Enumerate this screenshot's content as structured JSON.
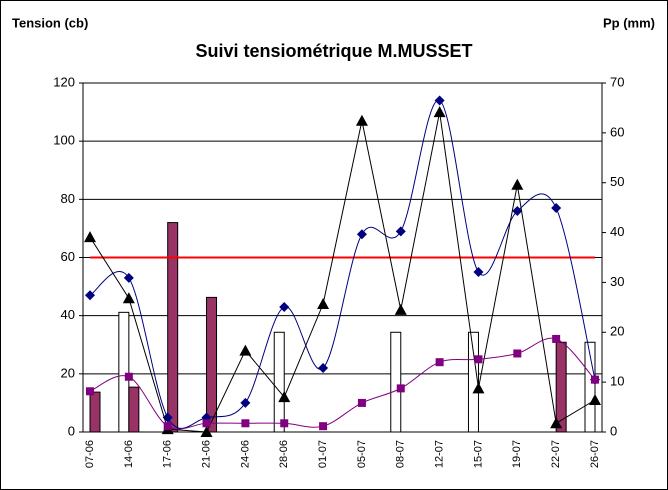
{
  "chart_data": {
    "type": "combo",
    "title": "Suivi tensiométrique M.MUSSET",
    "y_label": "Tension (cb)",
    "y2_label": "Pp (mm)",
    "categories": [
      "07-06",
      "14-06",
      "17-06",
      "21-06",
      "24-06",
      "28-06",
      "01-07",
      "05-07",
      "08-07",
      "12-07",
      "15-07",
      "19-07",
      "22-07",
      "26-07"
    ],
    "ylim": [
      0,
      120
    ],
    "yticks": [
      0,
      20,
      40,
      60,
      80,
      100,
      120
    ],
    "y2lim": [
      0,
      70
    ],
    "y2ticks": [
      0,
      10,
      20,
      30,
      40,
      50,
      60,
      70
    ],
    "grid": true,
    "series": [
      {
        "kind": "bar",
        "axis": "y2",
        "color": "#ffffff",
        "values": [
          null,
          24,
          null,
          null,
          null,
          20,
          null,
          null,
          20,
          null,
          20,
          null,
          null,
          18
        ]
      },
      {
        "kind": "bar",
        "axis": "y2",
        "color": "#993366",
        "values": [
          8,
          9,
          42,
          27,
          null,
          null,
          null,
          null,
          null,
          null,
          null,
          null,
          18,
          null
        ]
      },
      {
        "kind": "line",
        "color": "#ff0000",
        "values": [
          60,
          60,
          60,
          60,
          60,
          60,
          60,
          60,
          60,
          60,
          60,
          60,
          60,
          60
        ]
      },
      {
        "kind": "line",
        "color": "#000080",
        "marker": "diamond",
        "smooth": true,
        "values": [
          47,
          53,
          5,
          5,
          10,
          43,
          22,
          68,
          69,
          114,
          55,
          76,
          77,
          18
        ]
      },
      {
        "kind": "line",
        "color": "#000000",
        "marker": "triangle",
        "values": [
          67,
          46,
          1,
          0,
          28,
          12,
          44,
          107,
          42,
          110,
          15,
          85,
          3,
          11
        ]
      },
      {
        "kind": "line",
        "color": "#800080",
        "marker": "square",
        "smooth": true,
        "values": [
          14,
          19,
          2,
          3,
          3,
          3,
          2,
          10,
          15,
          24,
          25,
          27,
          32,
          18
        ]
      }
    ]
  }
}
